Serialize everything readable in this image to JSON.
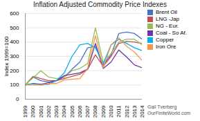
{
  "chart_data": {
    "type": "line",
    "title": "Inflation Adjusted Commodity Price Indexes",
    "ylabel": "Index 1999=100",
    "x": [
      1999,
      2000,
      2001,
      2002,
      2003,
      2004,
      2005,
      2006,
      2007,
      2008,
      2009,
      2010,
      2011,
      2012,
      2013,
      2014
    ],
    "series": [
      {
        "name": "Brent Oil",
        "color": "#4472C4",
        "values": [
          100,
          155,
          130,
          120,
          130,
          155,
          210,
          260,
          360,
          370,
          240,
          310,
          460,
          470,
          460,
          420
        ]
      },
      {
        "name": "LNG -Jap",
        "color": "#C0504D",
        "values": [
          100,
          160,
          145,
          130,
          130,
          145,
          160,
          175,
          210,
          310,
          230,
          300,
          390,
          405,
          400,
          390
        ]
      },
      {
        "name": "NG - Eur.",
        "color": "#9BBB59",
        "values": [
          100,
          150,
          200,
          155,
          145,
          155,
          200,
          215,
          250,
          500,
          255,
          320,
          400,
          420,
          420,
          380
        ]
      },
      {
        "name": "Coal - So Af.",
        "color": "#7030A0",
        "values": [
          100,
          110,
          105,
          115,
          130,
          165,
          175,
          185,
          210,
          390,
          215,
          260,
          345,
          295,
          240,
          220
        ]
      },
      {
        "name": "Copper",
        "color": "#00B0F0",
        "values": [
          100,
          110,
          100,
          105,
          130,
          185,
          300,
          380,
          390,
          360,
          250,
          380,
          420,
          390,
          360,
          340
        ]
      },
      {
        "name": "Iron Ore",
        "color": "#F79646",
        "values": [
          100,
          100,
          100,
          110,
          110,
          135,
          140,
          145,
          215,
          445,
          220,
          380,
          430,
          370,
          330,
          270
        ]
      }
    ],
    "xlim": [
      1999,
      2014
    ],
    "xticks": [
      1999,
      2000,
      2001,
      2002,
      2003,
      2004,
      2005,
      2006,
      2007,
      2008,
      2009,
      2010,
      2011,
      2012,
      2013,
      2014
    ],
    "ylim": [
      0,
      600
    ],
    "yticks": [
      0,
      100,
      200,
      300,
      400,
      500,
      600
    ],
    "grid": true,
    "legend": "upper right",
    "annotations": [
      "Gail Tverberg",
      "OurFiniteWorld.com"
    ]
  }
}
